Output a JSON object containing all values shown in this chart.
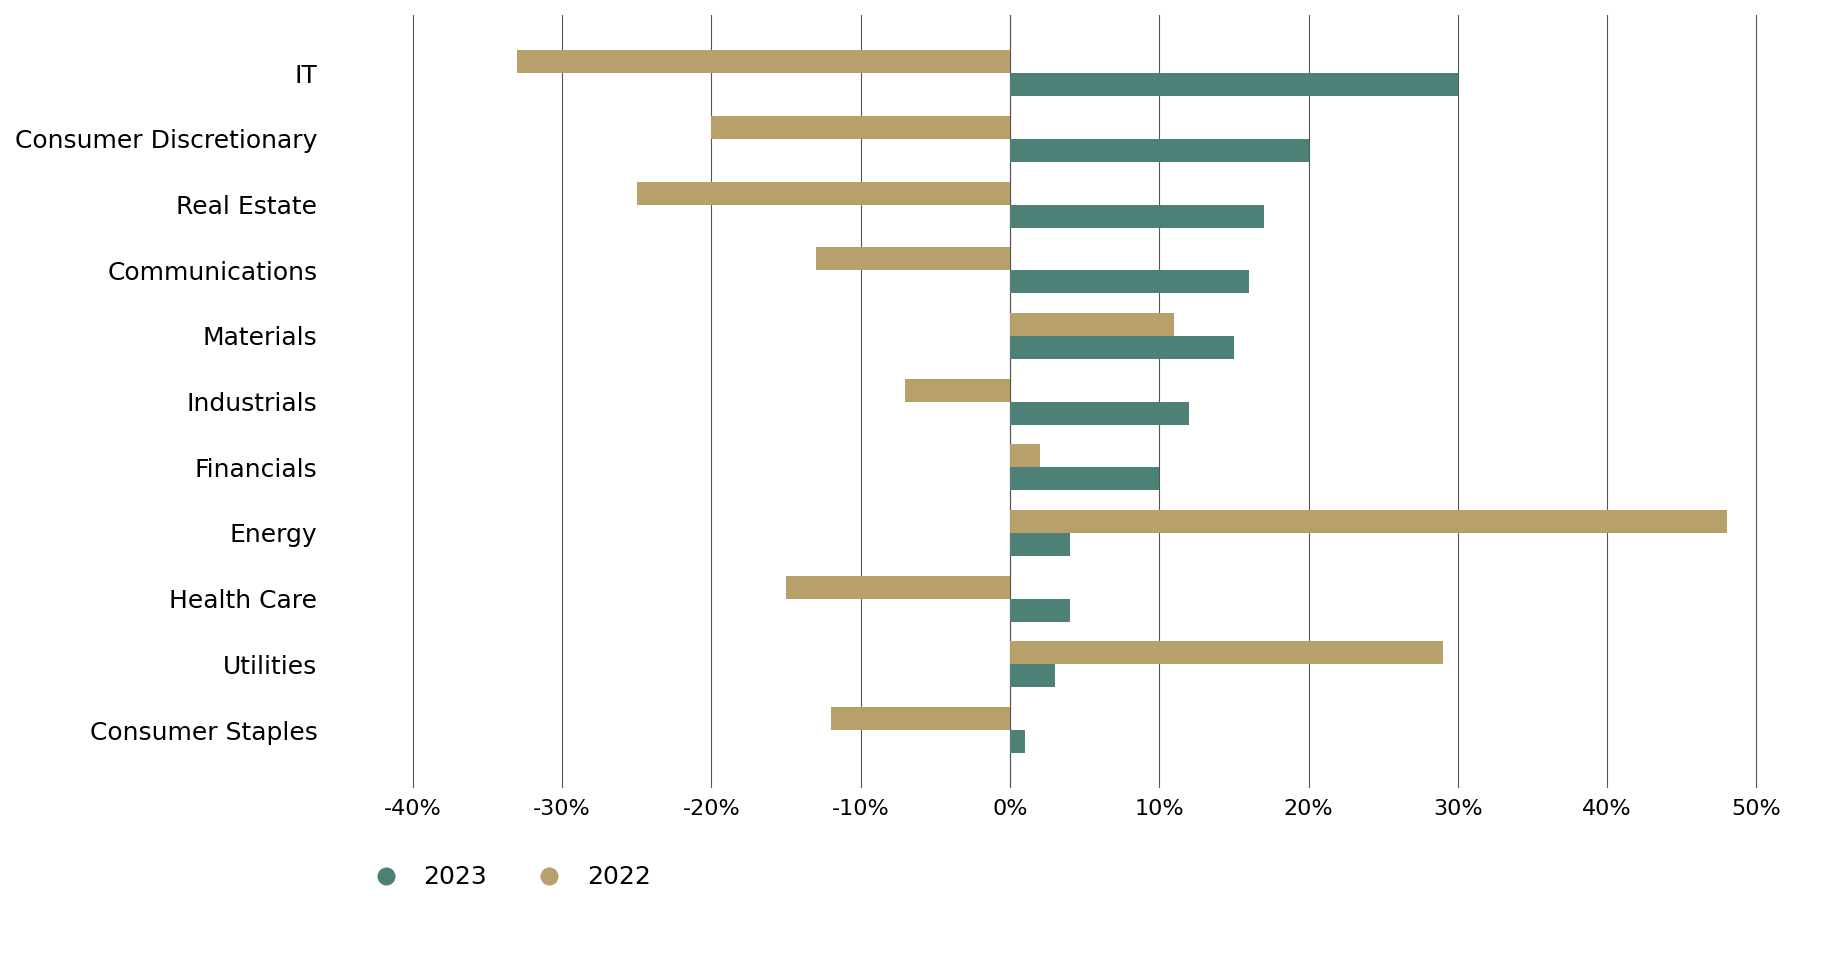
{
  "categories": [
    "IT",
    "Consumer Discretionary",
    "Real Estate",
    "Communications",
    "Materials",
    "Industrials",
    "Financials",
    "Energy",
    "Health Care",
    "Utilities",
    "Consumer Staples"
  ],
  "values_2023": [
    30,
    20,
    17,
    16,
    15,
    12,
    10,
    4,
    4,
    3,
    1
  ],
  "values_2022": [
    -33,
    -20,
    -25,
    -13,
    11,
    -7,
    2,
    48,
    -15,
    29,
    -12
  ],
  "color_2023": "#4d8076",
  "color_2022": "#b8a06a",
  "xlim": [
    -45,
    55
  ],
  "xticks": [
    -40,
    -30,
    -20,
    -10,
    0,
    10,
    20,
    30,
    40,
    50
  ],
  "xtick_labels": [
    "-40%",
    "-30%",
    "-20%",
    "-10%",
    "0%",
    "10%",
    "20%",
    "30%",
    "40%",
    "50%"
  ],
  "background_color": "#ffffff",
  "bar_height": 0.35,
  "legend_labels": [
    "2023",
    "2022"
  ],
  "grid_color": "#555555",
  "grid_linewidth": 0.8
}
